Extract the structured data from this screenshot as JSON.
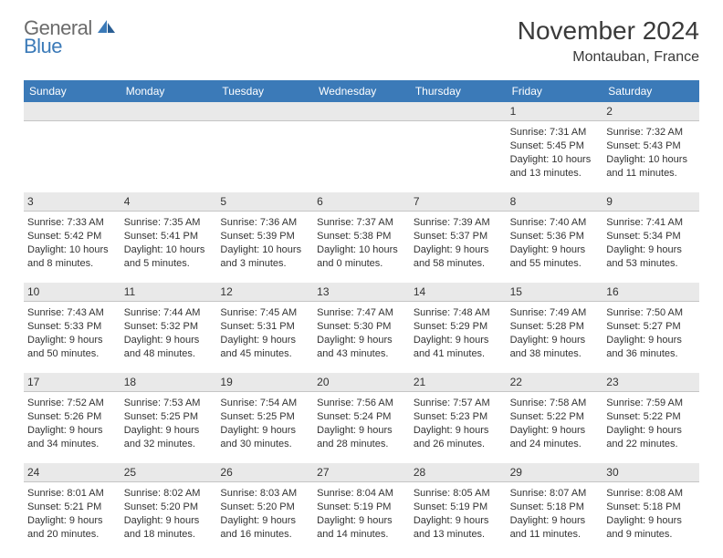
{
  "logo": {
    "part1": "General",
    "part2": "Blue"
  },
  "title": "November 2024",
  "location": "Montauban, France",
  "header_row_bg": "#3b7ab8",
  "daynum_bg": "#e9e9e9",
  "text_color": "#333333",
  "days_of_week": [
    "Sunday",
    "Monday",
    "Tuesday",
    "Wednesday",
    "Thursday",
    "Friday",
    "Saturday"
  ],
  "weeks": [
    [
      {
        "n": "",
        "sunrise": "",
        "sunset": "",
        "daylight": ""
      },
      {
        "n": "",
        "sunrise": "",
        "sunset": "",
        "daylight": ""
      },
      {
        "n": "",
        "sunrise": "",
        "sunset": "",
        "daylight": ""
      },
      {
        "n": "",
        "sunrise": "",
        "sunset": "",
        "daylight": ""
      },
      {
        "n": "",
        "sunrise": "",
        "sunset": "",
        "daylight": ""
      },
      {
        "n": "1",
        "sunrise": "Sunrise: 7:31 AM",
        "sunset": "Sunset: 5:45 PM",
        "daylight": "Daylight: 10 hours and 13 minutes."
      },
      {
        "n": "2",
        "sunrise": "Sunrise: 7:32 AM",
        "sunset": "Sunset: 5:43 PM",
        "daylight": "Daylight: 10 hours and 11 minutes."
      }
    ],
    [
      {
        "n": "3",
        "sunrise": "Sunrise: 7:33 AM",
        "sunset": "Sunset: 5:42 PM",
        "daylight": "Daylight: 10 hours and 8 minutes."
      },
      {
        "n": "4",
        "sunrise": "Sunrise: 7:35 AM",
        "sunset": "Sunset: 5:41 PM",
        "daylight": "Daylight: 10 hours and 5 minutes."
      },
      {
        "n": "5",
        "sunrise": "Sunrise: 7:36 AM",
        "sunset": "Sunset: 5:39 PM",
        "daylight": "Daylight: 10 hours and 3 minutes."
      },
      {
        "n": "6",
        "sunrise": "Sunrise: 7:37 AM",
        "sunset": "Sunset: 5:38 PM",
        "daylight": "Daylight: 10 hours and 0 minutes."
      },
      {
        "n": "7",
        "sunrise": "Sunrise: 7:39 AM",
        "sunset": "Sunset: 5:37 PM",
        "daylight": "Daylight: 9 hours and 58 minutes."
      },
      {
        "n": "8",
        "sunrise": "Sunrise: 7:40 AM",
        "sunset": "Sunset: 5:36 PM",
        "daylight": "Daylight: 9 hours and 55 minutes."
      },
      {
        "n": "9",
        "sunrise": "Sunrise: 7:41 AM",
        "sunset": "Sunset: 5:34 PM",
        "daylight": "Daylight: 9 hours and 53 minutes."
      }
    ],
    [
      {
        "n": "10",
        "sunrise": "Sunrise: 7:43 AM",
        "sunset": "Sunset: 5:33 PM",
        "daylight": "Daylight: 9 hours and 50 minutes."
      },
      {
        "n": "11",
        "sunrise": "Sunrise: 7:44 AM",
        "sunset": "Sunset: 5:32 PM",
        "daylight": "Daylight: 9 hours and 48 minutes."
      },
      {
        "n": "12",
        "sunrise": "Sunrise: 7:45 AM",
        "sunset": "Sunset: 5:31 PM",
        "daylight": "Daylight: 9 hours and 45 minutes."
      },
      {
        "n": "13",
        "sunrise": "Sunrise: 7:47 AM",
        "sunset": "Sunset: 5:30 PM",
        "daylight": "Daylight: 9 hours and 43 minutes."
      },
      {
        "n": "14",
        "sunrise": "Sunrise: 7:48 AM",
        "sunset": "Sunset: 5:29 PM",
        "daylight": "Daylight: 9 hours and 41 minutes."
      },
      {
        "n": "15",
        "sunrise": "Sunrise: 7:49 AM",
        "sunset": "Sunset: 5:28 PM",
        "daylight": "Daylight: 9 hours and 38 minutes."
      },
      {
        "n": "16",
        "sunrise": "Sunrise: 7:50 AM",
        "sunset": "Sunset: 5:27 PM",
        "daylight": "Daylight: 9 hours and 36 minutes."
      }
    ],
    [
      {
        "n": "17",
        "sunrise": "Sunrise: 7:52 AM",
        "sunset": "Sunset: 5:26 PM",
        "daylight": "Daylight: 9 hours and 34 minutes."
      },
      {
        "n": "18",
        "sunrise": "Sunrise: 7:53 AM",
        "sunset": "Sunset: 5:25 PM",
        "daylight": "Daylight: 9 hours and 32 minutes."
      },
      {
        "n": "19",
        "sunrise": "Sunrise: 7:54 AM",
        "sunset": "Sunset: 5:25 PM",
        "daylight": "Daylight: 9 hours and 30 minutes."
      },
      {
        "n": "20",
        "sunrise": "Sunrise: 7:56 AM",
        "sunset": "Sunset: 5:24 PM",
        "daylight": "Daylight: 9 hours and 28 minutes."
      },
      {
        "n": "21",
        "sunrise": "Sunrise: 7:57 AM",
        "sunset": "Sunset: 5:23 PM",
        "daylight": "Daylight: 9 hours and 26 minutes."
      },
      {
        "n": "22",
        "sunrise": "Sunrise: 7:58 AM",
        "sunset": "Sunset: 5:22 PM",
        "daylight": "Daylight: 9 hours and 24 minutes."
      },
      {
        "n": "23",
        "sunrise": "Sunrise: 7:59 AM",
        "sunset": "Sunset: 5:22 PM",
        "daylight": "Daylight: 9 hours and 22 minutes."
      }
    ],
    [
      {
        "n": "24",
        "sunrise": "Sunrise: 8:01 AM",
        "sunset": "Sunset: 5:21 PM",
        "daylight": "Daylight: 9 hours and 20 minutes."
      },
      {
        "n": "25",
        "sunrise": "Sunrise: 8:02 AM",
        "sunset": "Sunset: 5:20 PM",
        "daylight": "Daylight: 9 hours and 18 minutes."
      },
      {
        "n": "26",
        "sunrise": "Sunrise: 8:03 AM",
        "sunset": "Sunset: 5:20 PM",
        "daylight": "Daylight: 9 hours and 16 minutes."
      },
      {
        "n": "27",
        "sunrise": "Sunrise: 8:04 AM",
        "sunset": "Sunset: 5:19 PM",
        "daylight": "Daylight: 9 hours and 14 minutes."
      },
      {
        "n": "28",
        "sunrise": "Sunrise: 8:05 AM",
        "sunset": "Sunset: 5:19 PM",
        "daylight": "Daylight: 9 hours and 13 minutes."
      },
      {
        "n": "29",
        "sunrise": "Sunrise: 8:07 AM",
        "sunset": "Sunset: 5:18 PM",
        "daylight": "Daylight: 9 hours and 11 minutes."
      },
      {
        "n": "30",
        "sunrise": "Sunrise: 8:08 AM",
        "sunset": "Sunset: 5:18 PM",
        "daylight": "Daylight: 9 hours and 9 minutes."
      }
    ]
  ]
}
